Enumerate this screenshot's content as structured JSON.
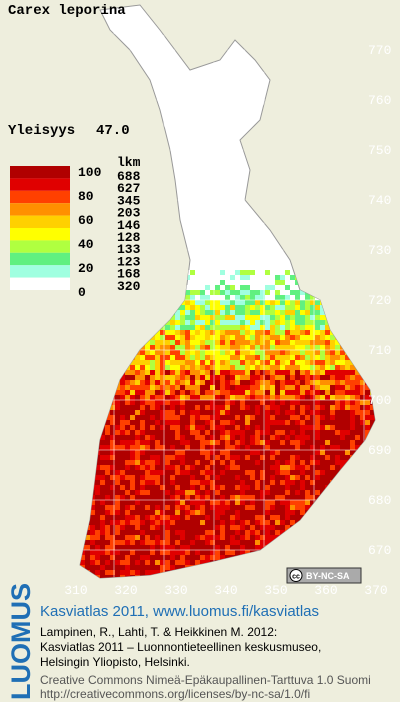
{
  "title": "Carex leporina",
  "frequency": {
    "label": "Yleisyys",
    "value": "47.0"
  },
  "legend": {
    "header": "lkm",
    "scale": [
      100,
      80,
      60,
      40,
      20,
      0
    ],
    "counts": [
      688,
      627,
      345,
      203,
      146,
      128,
      133,
      123,
      168,
      320
    ]
  },
  "grid": {
    "northing": [
      770,
      760,
      750,
      740,
      730,
      720,
      710,
      700,
      690,
      680,
      670
    ],
    "easting": [
      310,
      320,
      330,
      340,
      350,
      360,
      370
    ]
  },
  "license_badge": {
    "icon": "cc",
    "text": "BY-NC-SA"
  },
  "footer": {
    "logo": "LUOMUS",
    "heading": "Kasviatlas 2011, www.luomus.fi/kasviatlas",
    "citation": [
      "Lampinen, R., Lahti, T. & Heikkinen M. 2012:",
      "Kasviatlas 2011 – Luonnontieteellinen keskusmuseo,",
      "Helsingin Yliopisto, Helsinki."
    ],
    "license": [
      "Creative Commons Nimeä-Epäkaupallinen-Tarttuva 1.0 Suomi",
      "http://creativecommons.org/licenses/by-nc-sa/1.0/fi"
    ]
  }
}
